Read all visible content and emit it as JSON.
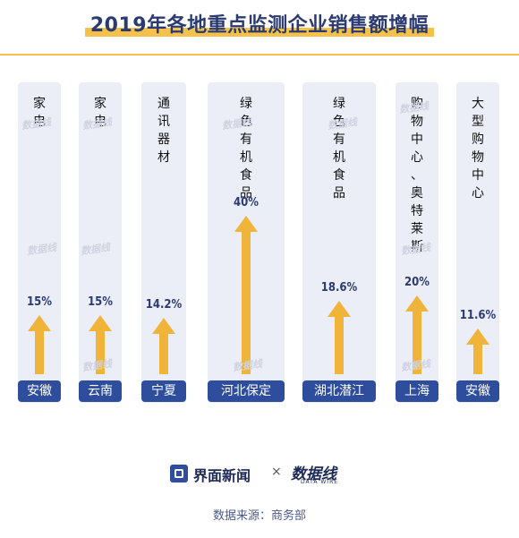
{
  "title": "2019年各地重点监测企业销售额增幅",
  "chart_data": {
    "type": "bar",
    "title": "2019年各地重点监测企业销售额增幅",
    "categories": [
      "家电",
      "家电",
      "通讯器材",
      "绿色有机食品",
      "绿色有机食品",
      "购物中心、奥特莱斯",
      "大型购物中心"
    ],
    "locations": [
      "安徽",
      "云南",
      "宁夏",
      "河北保定",
      "湖北潜江",
      "上海",
      "安徽"
    ],
    "values": [
      15,
      15,
      14.2,
      40,
      18.6,
      20,
      11.6
    ],
    "labels": [
      "15%",
      "15%",
      "14.2%",
      "40%",
      "18.6%",
      "20%",
      "11.6%"
    ],
    "unit": "%",
    "ylim": [
      0,
      40
    ],
    "bar_color": "#f0b43a",
    "label_bg_color": "#2e4e9d",
    "column_bg_color": "#eceef7"
  },
  "footer": {
    "brand1": "界面新闻",
    "separator": "×",
    "brand2": "数据线",
    "brand2_sub": "DATA WIRE",
    "source": "数据来源：商务部"
  },
  "watermark": "数据线"
}
